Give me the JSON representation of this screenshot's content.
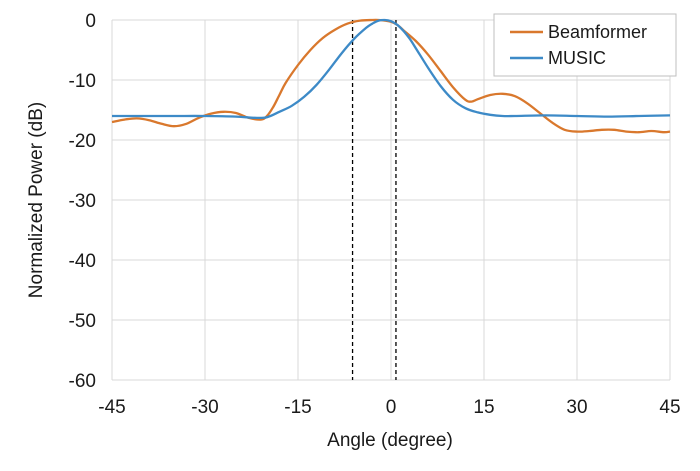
{
  "chart_data": {
    "type": "line",
    "title": "",
    "xlabel": "Angle (degree)",
    "ylabel": "Normalized Power (dB)",
    "xlim": [
      -45,
      45
    ],
    "ylim": [
      -60,
      0
    ],
    "xticks": [
      -45,
      -30,
      -15,
      0,
      15,
      30,
      45
    ],
    "yticks": [
      0,
      -10,
      -20,
      -30,
      -40,
      -50,
      -60
    ],
    "grid": true,
    "legend_position": "top-right",
    "vlines": [
      -6.2,
      0.8
    ],
    "series": [
      {
        "name": "Beamformer",
        "color": "#d9782d",
        "x": [
          -45,
          -43,
          -41,
          -39,
          -37,
          -35,
          -33,
          -31,
          -29,
          -27,
          -25,
          -23,
          -21,
          -20,
          -19,
          -18,
          -17,
          -15,
          -13,
          -11,
          -9,
          -7,
          -5,
          -3,
          -2,
          -1,
          0,
          1,
          2,
          4,
          6,
          8,
          10,
          12,
          13,
          14,
          16,
          18,
          20,
          22,
          24,
          26,
          28,
          30,
          32,
          34,
          36,
          38,
          40,
          42,
          44,
          45
        ],
        "y": [
          -17.0,
          -16.6,
          -16.4,
          -16.7,
          -17.3,
          -17.7,
          -17.3,
          -16.3,
          -15.6,
          -15.3,
          -15.5,
          -16.3,
          -16.6,
          -16.0,
          -14.5,
          -12.5,
          -10.5,
          -7.5,
          -5.0,
          -3.0,
          -1.6,
          -0.6,
          -0.1,
          0.0,
          0.0,
          -0.1,
          -0.3,
          -0.8,
          -1.7,
          -3.5,
          -5.8,
          -8.5,
          -11.2,
          -13.3,
          -13.6,
          -13.2,
          -12.5,
          -12.3,
          -12.7,
          -13.9,
          -15.5,
          -17.1,
          -18.3,
          -18.6,
          -18.5,
          -18.3,
          -18.3,
          -18.6,
          -18.7,
          -18.5,
          -18.7,
          -18.6
        ]
      },
      {
        "name": "MUSIC",
        "color": "#3d8ac7",
        "x": [
          -45,
          -40,
          -35,
          -30,
          -25,
          -22,
          -20,
          -18,
          -16,
          -14,
          -12,
          -10,
          -8,
          -6,
          -4,
          -3,
          -2,
          -1,
          0,
          1,
          2,
          3,
          4,
          6,
          8,
          10,
          12,
          14,
          16,
          18,
          20,
          25,
          30,
          35,
          40,
          45
        ],
        "y": [
          -16.0,
          -16.0,
          -16.0,
          -16.0,
          -16.1,
          -16.3,
          -16.2,
          -15.3,
          -14.3,
          -12.8,
          -10.8,
          -8.3,
          -5.6,
          -3.2,
          -1.3,
          -0.6,
          -0.1,
          0.0,
          -0.2,
          -0.8,
          -1.8,
          -3.1,
          -4.7,
          -8.0,
          -11.0,
          -13.3,
          -14.7,
          -15.4,
          -15.8,
          -16.0,
          -16.0,
          -15.9,
          -16.0,
          -16.1,
          -16.0,
          -15.9
        ]
      }
    ]
  }
}
